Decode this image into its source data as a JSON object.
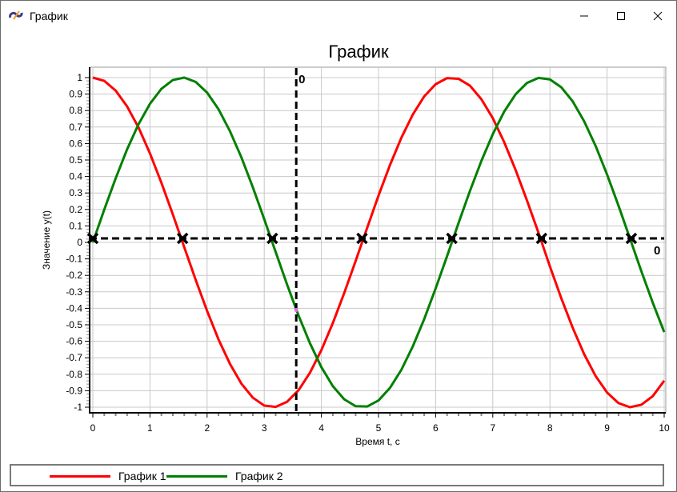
{
  "window": {
    "title": "График",
    "icon": "app-logo-icon",
    "controls": [
      "minimize-icon",
      "maximize-icon",
      "close-icon"
    ]
  },
  "chart_data": {
    "type": "line",
    "title": "График",
    "xlabel": "Время t, c",
    "ylabel": "Значение y(t)",
    "xlim": [
      0,
      10
    ],
    "ylim": [
      -1,
      1
    ],
    "xticks": [
      "0",
      "1",
      "2",
      "3",
      "4",
      "5",
      "6",
      "7",
      "8",
      "9",
      "10"
    ],
    "yticks": [
      "1",
      "0.9",
      "0.8",
      "0.7",
      "0.6",
      "0.5",
      "0.4",
      "0.3",
      "0.2",
      "0.1",
      "0",
      "-0.1",
      "-0.2",
      "-0.3",
      "-0.4",
      "-0.5",
      "-0.6",
      "-0.7",
      "-0.8",
      "-0.9",
      "-1"
    ],
    "grid": true,
    "legend_placement": "bottom",
    "x": [
      0,
      0.2,
      0.4,
      0.6,
      0.8,
      1.0,
      1.2,
      1.4,
      1.6,
      1.8,
      2.0,
      2.2,
      2.4,
      2.6,
      2.8,
      3.0,
      3.2,
      3.4,
      3.6,
      3.8,
      4.0,
      4.2,
      4.4,
      4.6,
      4.8,
      5.0,
      5.2,
      5.4,
      5.6,
      5.8,
      6.0,
      6.2,
      6.4,
      6.6,
      6.8,
      7.0,
      7.2,
      7.4,
      7.6,
      7.8,
      8.0,
      8.2,
      8.4,
      8.6,
      8.8,
      9.0,
      9.2,
      9.4,
      9.6,
      9.8,
      10
    ],
    "series": [
      {
        "name": "График 1",
        "color": "#ff0000",
        "values": [
          1,
          0.98,
          0.921,
          0.825,
          0.697,
          0.54,
          0.362,
          0.17,
          -0.029,
          -0.227,
          -0.416,
          -0.589,
          -0.737,
          -0.857,
          -0.942,
          -0.99,
          -0.998,
          -0.967,
          -0.897,
          -0.791,
          -0.654,
          -0.49,
          -0.307,
          -0.112,
          0.087,
          0.284,
          0.469,
          0.635,
          0.776,
          0.886,
          0.96,
          0.997,
          0.993,
          0.951,
          0.869,
          0.754,
          0.608,
          0.439,
          0.253,
          0.058,
          -0.146,
          -0.34,
          -0.519,
          -0.679,
          -0.811,
          -0.911,
          -0.975,
          -1.0,
          -0.985,
          -0.933,
          -0.839
        ]
      },
      {
        "name": "График 2",
        "color": "#008000",
        "values": [
          0,
          0.199,
          0.389,
          0.565,
          0.717,
          0.841,
          0.932,
          0.985,
          1.0,
          0.974,
          0.909,
          0.808,
          0.675,
          0.516,
          0.335,
          0.141,
          -0.058,
          -0.256,
          -0.443,
          -0.612,
          -0.757,
          -0.872,
          -0.952,
          -0.994,
          -0.996,
          -0.959,
          -0.883,
          -0.773,
          -0.631,
          -0.465,
          -0.279,
          -0.083,
          0.117,
          0.312,
          0.494,
          0.657,
          0.794,
          0.899,
          0.968,
          0.998,
          0.989,
          0.941,
          0.855,
          0.734,
          0.585,
          0.412,
          0.223,
          0.025,
          -0.175,
          -0.366,
          -0.544
        ]
      }
    ],
    "markers": {
      "symbol": "x",
      "color": "#000000",
      "x": [
        0,
        1.571,
        3.142,
        4.712,
        6.283,
        7.854,
        9.425
      ],
      "y": [
        0,
        0,
        0,
        0,
        0,
        0,
        0
      ]
    },
    "cursor": {
      "x": 3.56,
      "y": 0,
      "x_label": "0",
      "y_label": "0",
      "intersection_y": -0.41
    }
  }
}
